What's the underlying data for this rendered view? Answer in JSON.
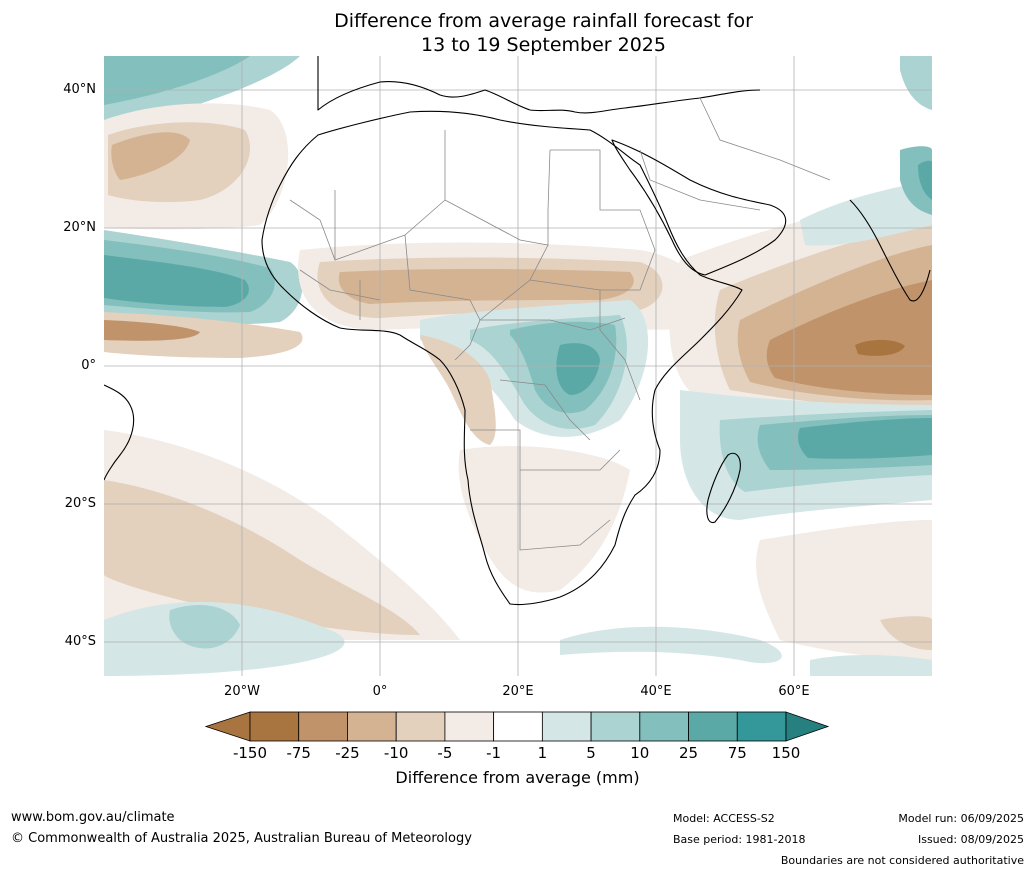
{
  "title": {
    "line1": "Difference from average rainfall forecast for",
    "line2": "13 to 19 September 2025"
  },
  "map": {
    "lat_labels": [
      "40°N",
      "20°N",
      "0°",
      "20°S",
      "40°S"
    ],
    "lon_labels": [
      "20°W",
      "0°",
      "20°E",
      "40°E",
      "60°E"
    ]
  },
  "colorbar": {
    "title": "Difference from average (mm)",
    "tick_labels": [
      "-150",
      "-75",
      "-25",
      "-10",
      "-5",
      "-1",
      "1",
      "5",
      "10",
      "25",
      "75",
      "150"
    ],
    "colors": [
      "#a8743f",
      "#c0936a",
      "#d4b393",
      "#e3d0bd",
      "#f2ebe6",
      "#ffffff",
      "#d4e7e6",
      "#aad3d1",
      "#83bfbd",
      "#5ba9a7",
      "#34989a",
      "#26807f"
    ]
  },
  "footer": {
    "website": "www.bom.gov.au/climate",
    "copyright": "© Commonwealth of Australia 2025, Australian Bureau of Meteorology",
    "model": "Model: ACCESS-S2",
    "base_period": "Base period: 1981-2018",
    "model_run": "Model run: 06/09/2025",
    "issued": "Issued: 08/09/2025",
    "boundaries": "Boundaries are not considered authoritative"
  }
}
